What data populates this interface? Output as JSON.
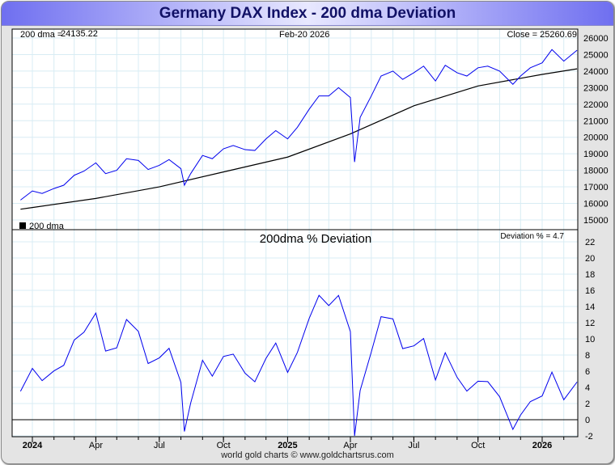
{
  "title": "Germany DAX Index - 200 dma Deviation",
  "footer": "world gold charts © www.goldchartsrus.com",
  "colors": {
    "price": "#0000ee",
    "dma": "#000000",
    "deviation": "#0000ee",
    "grid": "#d8ecf4",
    "title_text": "#111166"
  },
  "chart_data": [
    {
      "type": "line",
      "panel": "upper",
      "header": {
        "dma_label": "200 dma =",
        "dma_value": "24135.22",
        "date": "Feb-20  2026",
        "close_label": "Close = 25260.69"
      },
      "legend": "200 dma",
      "legend_placement": "bottom-left",
      "ylim": [
        15000,
        26000
      ],
      "yticks": [
        15000,
        16000,
        17000,
        18000,
        19000,
        20000,
        21000,
        22000,
        23000,
        24000,
        25000,
        26000
      ],
      "series": [
        {
          "name": "Close",
          "dates": [
            "2023-12-15",
            "2024-01-01",
            "2024-01-15",
            "2024-02-01",
            "2024-02-15",
            "2024-03-01",
            "2024-03-15",
            "2024-04-01",
            "2024-04-15",
            "2024-05-01",
            "2024-05-15",
            "2024-06-01",
            "2024-06-15",
            "2024-07-01",
            "2024-07-15",
            "2024-08-01",
            "2024-08-06",
            "2024-08-15",
            "2024-09-01",
            "2024-09-15",
            "2024-10-01",
            "2024-10-15",
            "2024-11-01",
            "2024-11-15",
            "2024-12-01",
            "2024-12-15",
            "2025-01-01",
            "2025-01-15",
            "2025-02-01",
            "2025-02-15",
            "2025-03-01",
            "2025-03-15",
            "2025-04-01",
            "2025-04-07",
            "2025-04-15",
            "2025-05-01",
            "2025-05-15",
            "2025-06-01",
            "2025-06-15",
            "2025-07-01",
            "2025-07-15",
            "2025-08-01",
            "2025-08-15",
            "2025-09-01",
            "2025-09-15",
            "2025-10-01",
            "2025-10-15",
            "2025-11-01",
            "2025-11-20",
            "2025-12-01",
            "2025-12-15",
            "2026-01-01",
            "2026-01-15",
            "2026-02-01",
            "2026-02-20"
          ],
          "values": [
            16200,
            16750,
            16600,
            16900,
            17100,
            17700,
            17950,
            18450,
            17800,
            18000,
            18700,
            18600,
            18050,
            18300,
            18650,
            18100,
            17100,
            17800,
            18900,
            18700,
            19300,
            19500,
            19250,
            19200,
            19900,
            20400,
            19900,
            20600,
            21700,
            22500,
            22500,
            23000,
            22400,
            18500,
            21200,
            22500,
            23700,
            24000,
            23500,
            23900,
            24300,
            23400,
            24350,
            23900,
            23700,
            24200,
            24300,
            24000,
            23200,
            23700,
            24200,
            24500,
            25300,
            24600,
            25260.69
          ]
        },
        {
          "name": "200 dma",
          "dates": [
            "2023-12-15",
            "2024-01-01",
            "2024-04-01",
            "2024-07-01",
            "2024-10-01",
            "2025-01-01",
            "2025-04-01",
            "2025-07-01",
            "2025-10-01",
            "2026-01-01",
            "2026-02-20"
          ],
          "values": [
            15650,
            15750,
            16300,
            17000,
            17900,
            18800,
            20200,
            21900,
            23100,
            23800,
            24135.22
          ]
        }
      ]
    },
    {
      "type": "line",
      "panel": "lower",
      "title": "200dma  %  Deviation",
      "readout": "Deviation % = 4.7",
      "ylim": [
        -2,
        22
      ],
      "yticks": [
        -2,
        0,
        2,
        4,
        6,
        8,
        10,
        12,
        14,
        16,
        18,
        20,
        22
      ],
      "series": [
        {
          "name": "Deviation %",
          "derived_from": "Close / 200 dma - 1",
          "last_value": 4.7
        }
      ]
    }
  ],
  "xaxis": {
    "ticks": [
      {
        "date": "2024-01-01",
        "label": "2024",
        "bold": true
      },
      {
        "date": "2024-04-01",
        "label": "Apr"
      },
      {
        "date": "2024-07-01",
        "label": "Jul"
      },
      {
        "date": "2024-10-01",
        "label": "Oct"
      },
      {
        "date": "2025-01-01",
        "label": "2025",
        "bold": true
      },
      {
        "date": "2025-04-01",
        "label": "Apr"
      },
      {
        "date": "2025-07-01",
        "label": "Jul"
      },
      {
        "date": "2025-10-01",
        "label": "Oct"
      },
      {
        "date": "2026-01-01",
        "label": "2026",
        "bold": true
      }
    ]
  }
}
